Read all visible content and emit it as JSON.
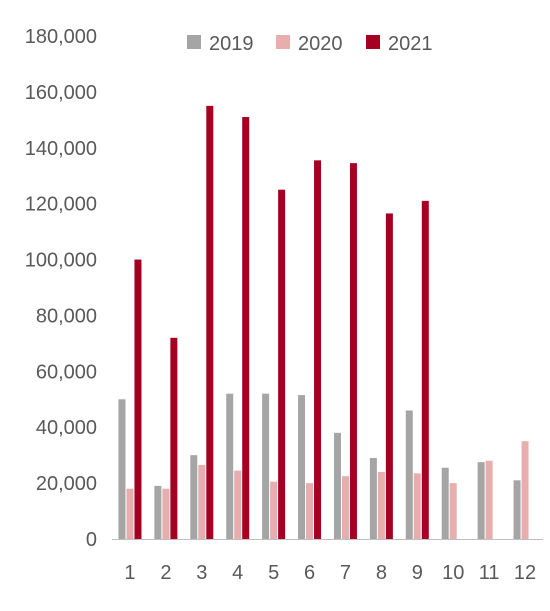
{
  "chart_data": {
    "type": "bar",
    "title": "",
    "xlabel": "",
    "ylabel": "",
    "categories": [
      "1",
      "2",
      "3",
      "4",
      "5",
      "6",
      "7",
      "8",
      "9",
      "10",
      "11",
      "12"
    ],
    "ylim": [
      0,
      180000
    ],
    "yticks": [
      0,
      20000,
      40000,
      60000,
      80000,
      100000,
      120000,
      140000,
      160000,
      180000
    ],
    "ytick_labels": [
      "0",
      "20,000",
      "40,000",
      "60,000",
      "80,000",
      "100,000",
      "120,000",
      "140,000",
      "160,000",
      "180,000"
    ],
    "grid": false,
    "legend_position": "top",
    "series": [
      {
        "name": "2019",
        "color": "#a5a5a5",
        "values": [
          50000,
          19000,
          30000,
          52000,
          52000,
          51500,
          38000,
          29000,
          46000,
          25500,
          27500,
          21000
        ]
      },
      {
        "name": "2020",
        "color": "#e8aeae",
        "values": [
          18000,
          18000,
          26500,
          24500,
          20500,
          20000,
          22500,
          24000,
          23500,
          20000,
          28000,
          35000
        ]
      },
      {
        "name": "2021",
        "color": "#a50021",
        "values": [
          100000,
          72000,
          155000,
          151000,
          125000,
          135500,
          134500,
          116500,
          121000,
          null,
          null,
          null
        ]
      }
    ]
  }
}
